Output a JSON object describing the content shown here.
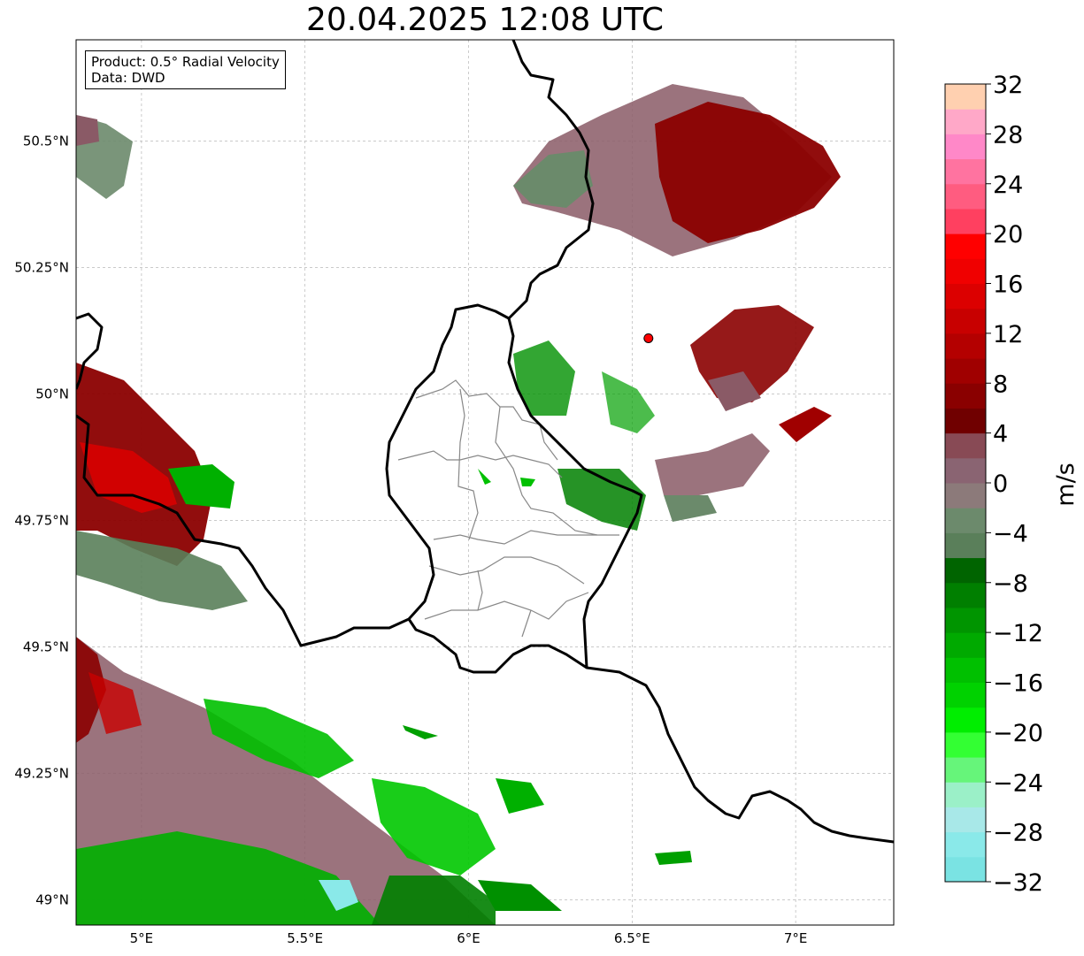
{
  "title": "20.04.2025 12:08 UTC",
  "info": {
    "product": "Product: 0.5° Radial Velocity",
    "source": "Data: DWD"
  },
  "map": {
    "lon_range": [
      4.8,
      7.3
    ],
    "lat_range": [
      48.95,
      50.7
    ],
    "lon_ticks": [
      {
        "value": 5.0,
        "label": "5°E"
      },
      {
        "value": 5.5,
        "label": "5.5°E"
      },
      {
        "value": 6.0,
        "label": "6°E"
      },
      {
        "value": 6.5,
        "label": "6.5°E"
      },
      {
        "value": 7.0,
        "label": "7°E"
      }
    ],
    "lat_ticks": [
      {
        "value": 49.0,
        "label": "49°N"
      },
      {
        "value": 49.25,
        "label": "49.25°N"
      },
      {
        "value": 49.5,
        "label": "49.5°N"
      },
      {
        "value": 49.75,
        "label": "49.75°N"
      },
      {
        "value": 50.0,
        "label": "50°N"
      },
      {
        "value": 50.25,
        "label": "50.25°N"
      },
      {
        "value": 50.5,
        "label": "50.5°N"
      }
    ],
    "radar_site": {
      "lon": 6.55,
      "lat": 50.11
    },
    "borders_color": "#000000",
    "admin_color": "#888888"
  },
  "colorbar": {
    "unit": "m/s",
    "min": -32,
    "max": 32,
    "tick_labels": [
      "32",
      "28",
      "24",
      "20",
      "16",
      "12",
      "8",
      "4",
      "0",
      "−4",
      "−8",
      "−12",
      "−16",
      "−20",
      "−24",
      "−28",
      "−32"
    ],
    "colors": [
      "#7ae3e3",
      "#8ae9e9",
      "#a8e8e8",
      "#9bf0c8",
      "#66f57a",
      "#33ff33",
      "#00ee00",
      "#00d200",
      "#00c000",
      "#00aa00",
      "#009500",
      "#007f00",
      "#006400",
      "#5a7f5a",
      "#6c8a6c",
      "#8c7a7a",
      "#8a6472",
      "#884a55",
      "#700000",
      "#8a0000",
      "#a00000",
      "#b40000",
      "#c80000",
      "#dc0000",
      "#f00000",
      "#ff0000",
      "#ff4060",
      "#ff5c80",
      "#ff73a0",
      "#ff88c8",
      "#ffa8c8",
      "#ffd0b0"
    ]
  },
  "echo_colors": {
    "dark_red": "#8b0000",
    "red": "#cc0000",
    "mauve": "#8a5a66",
    "grey_green": "#6b8a6b",
    "green": "#00a000",
    "bright_green": "#00d000",
    "cyan": "#8ae9e9"
  }
}
